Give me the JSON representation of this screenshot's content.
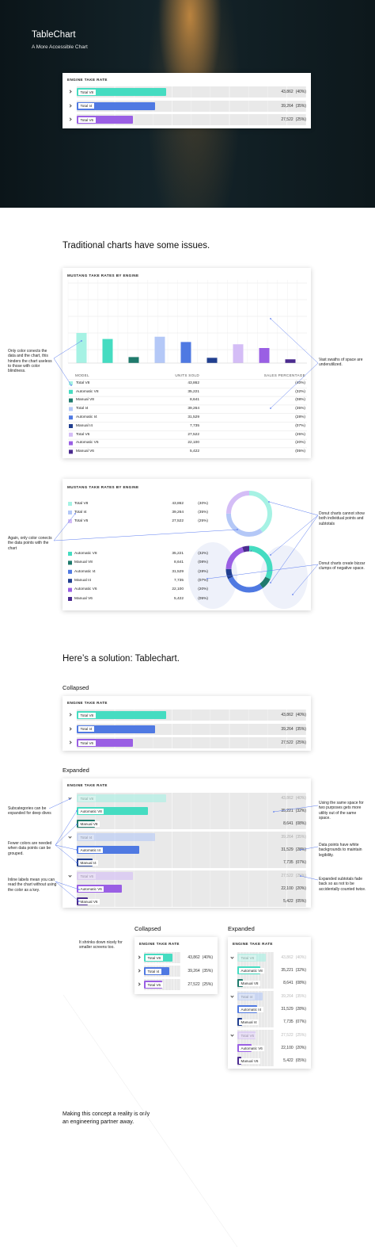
{
  "hero": {
    "title": "TableChart",
    "subtitle": "A More Accessible Chart",
    "card_title": "ENGINE TAKE RATE"
  },
  "engines": [
    {
      "total": {
        "name": "Total V8",
        "units": "43,862",
        "percent": 40,
        "percent_label": "(40%)",
        "color": "#a6f2e4"
      },
      "subs": [
        {
          "name": "Automatic V8",
          "units": "35,221",
          "percent": 32,
          "percent_label": "(32%)",
          "color": "#45dcc1"
        },
        {
          "name": "Manual V8",
          "units": "8,641",
          "percent": 8,
          "percent_label": "(08%)",
          "color": "#1f7a6c"
        }
      ]
    },
    {
      "total": {
        "name": "Total I4",
        "units": "39,264",
        "percent": 35,
        "percent_label": "(35%)",
        "color": "#b4c8f7"
      },
      "subs": [
        {
          "name": "Automatic I4",
          "units": "31,529",
          "percent": 28,
          "percent_label": "(28%)",
          "color": "#4f79e2"
        },
        {
          "name": "Manual I4",
          "units": "7,735",
          "percent": 7,
          "percent_label": "(07%)",
          "color": "#213f8f"
        }
      ]
    },
    {
      "total": {
        "name": "Total V6",
        "units": "27,522",
        "percent": 25,
        "percent_label": "(25%)",
        "color": "#d4bdf6"
      },
      "subs": [
        {
          "name": "Automatic V6",
          "units": "22,100",
          "percent": 20,
          "percent_label": "(20%)",
          "color": "#9a5fe4"
        },
        {
          "name": "Manual V6",
          "units": "5,422",
          "percent": 5,
          "percent_label": "(05%)",
          "color": "#4b2b8f"
        }
      ]
    }
  ],
  "issues": {
    "heading": "Traditional charts have some issues.",
    "bar_card": {
      "title": "MUSTANG TAKE RATES BY ENGINE",
      "columns": [
        "MODEL",
        "UNITS SOLD",
        "SALES PERCENTAGE"
      ]
    },
    "donut_card": {
      "title": "MUSTANG TAKE RATES BY ENGINE"
    },
    "notes": [
      "Only color conects the data and the chart, this hinders the chart useless to those with color blindness.",
      "Vast swaths of space are underutilized.",
      "Again, only color conects the data points with the chart",
      "Donut charts cannot show both individual points and subtotals",
      "Donut charts create bizzar clumps of negative space."
    ]
  },
  "solution": {
    "heading": "Here’s a solution: Tablechart.",
    "collapsed_label": "Collapsed",
    "collapsed_title": "ENGINE TAKE RATE",
    "expanded_label": "Expanded",
    "expanded_title": "ENGINE TAKE RATE",
    "notes": [
      "Subcategories can be expanded for deep dives",
      "Fewer colors are needed when data points can be grouped.",
      "Inline labels mean you can read the chart without using the color as a key.",
      "Using the same space for two purposes gets more utility out of the same space.",
      "Data points have white backgrounds to maintain legibility.",
      "Expanded subtotals fade back so as not to be accidentally counted twice."
    ]
  },
  "small_screens": {
    "note": "It shrinks down nicely for smaller screens too.",
    "collapsed_label": "Collapsed",
    "collapsed_title": "ENGINE TAKE RATE",
    "expanded_label": "Expanded",
    "expanded_title": "ENGINE TAKE RATE"
  },
  "closing": "Making this concept a reality is only an engineering partner away."
}
